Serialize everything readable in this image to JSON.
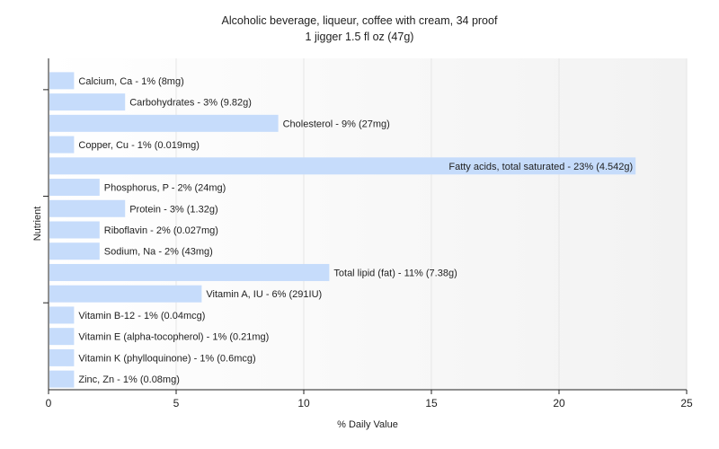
{
  "chart_data": {
    "type": "bar",
    "orientation": "horizontal",
    "title": "Alcoholic beverage, liqueur, coffee with cream, 34 proof",
    "subtitle": "1 jigger 1.5 fl oz (47g)",
    "xlabel": "% Daily Value",
    "ylabel": "Nutrient",
    "xlim": [
      0,
      25
    ],
    "xticks": [
      0,
      5,
      10,
      15,
      20,
      25
    ],
    "grid": "vertical",
    "bar_color": "#c6dcfb",
    "categories": [
      "Calcium, Ca",
      "Carbohydrates",
      "Cholesterol",
      "Copper, Cu",
      "Fatty acids, total saturated",
      "Phosphorus, P",
      "Protein",
      "Riboflavin",
      "Sodium, Na",
      "Total lipid (fat)",
      "Vitamin A, IU",
      "Vitamin B-12",
      "Vitamin E (alpha-tocopherol)",
      "Vitamin K (phylloquinone)",
      "Zinc, Zn"
    ],
    "values": [
      1,
      3,
      9,
      1,
      23,
      2,
      3,
      2,
      2,
      11,
      6,
      1,
      1,
      1,
      1
    ],
    "labels": [
      "Calcium, Ca - 1% (8mg)",
      "Carbohydrates - 3% (9.82g)",
      "Cholesterol - 9% (27mg)",
      "Copper, Cu - 1% (0.019mg)",
      "Fatty acids, total saturated - 23% (4.542g)",
      "Phosphorus, P - 2% (24mg)",
      "Protein - 3% (1.32g)",
      "Riboflavin - 2% (0.027mg)",
      "Sodium, Na - 2% (43mg)",
      "Total lipid (fat) - 11% (7.38g)",
      "Vitamin A, IU - 6% (291IU)",
      "Vitamin B-12 - 1% (0.04mcg)",
      "Vitamin E (alpha-tocopherol) - 1% (0.21mg)",
      "Vitamin K (phylloquinone) - 1% (0.6mcg)",
      "Zinc, Zn - 1% (0.08mg)"
    ]
  }
}
